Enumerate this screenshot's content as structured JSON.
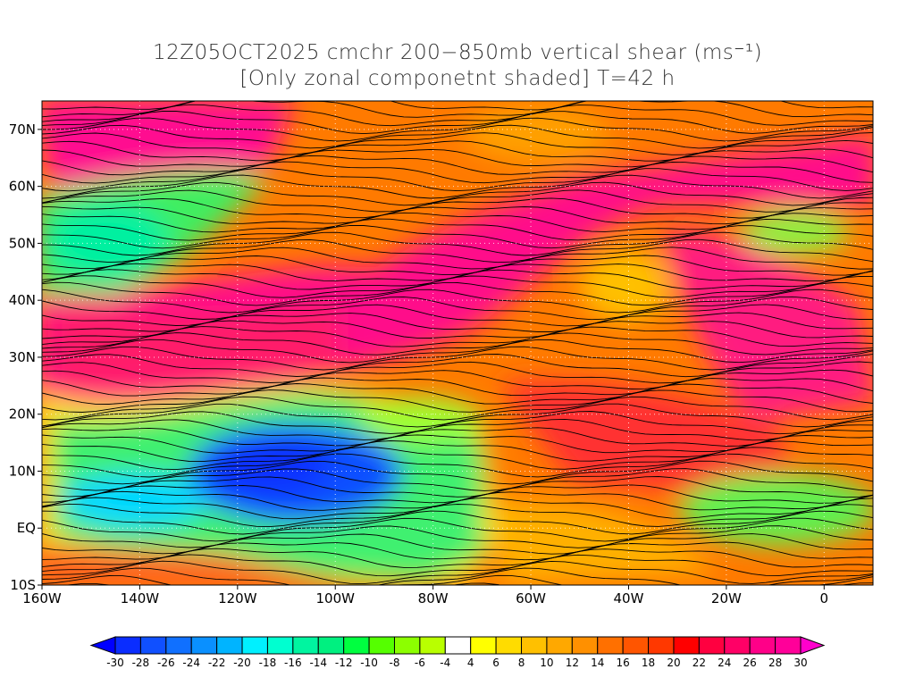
{
  "title": {
    "line1": "12Z05OCT2025 cmchr 200−850mb vertical shear (ms⁻¹)",
    "line2": "[Only zonal componetnt shaded] T=42 h"
  },
  "map": {
    "lon_range": [
      -160,
      10
    ],
    "lat_range": [
      -10,
      75
    ],
    "lat_labels": [
      {
        "lat": 70,
        "label": "70N"
      },
      {
        "lat": 60,
        "label": "60N"
      },
      {
        "lat": 50,
        "label": "50N"
      },
      {
        "lat": 40,
        "label": "40N"
      },
      {
        "lat": 30,
        "label": "30N"
      },
      {
        "lat": 20,
        "label": "20N"
      },
      {
        "lat": 10,
        "label": "10N"
      },
      {
        "lat": 0,
        "label": "EQ"
      },
      {
        "lat": -10,
        "label": "10S"
      }
    ],
    "lon_labels": [
      {
        "lon": -160,
        "label": "160W"
      },
      {
        "lon": -140,
        "label": "140W"
      },
      {
        "lon": -120,
        "label": "120W"
      },
      {
        "lon": -100,
        "label": "100W"
      },
      {
        "lon": -80,
        "label": "80W"
      },
      {
        "lon": -60,
        "label": "60W"
      },
      {
        "lon": -40,
        "label": "40W"
      },
      {
        "lon": -20,
        "label": "20W"
      },
      {
        "lon": 0,
        "label": "0"
      }
    ]
  },
  "colorbar": {
    "labels": [
      "-30",
      "-28",
      "-26",
      "-24",
      "-22",
      "-20",
      "-18",
      "-16",
      "-14",
      "-12",
      "-10",
      "-8",
      "-6",
      "-4",
      "4",
      "6",
      "8",
      "10",
      "12",
      "14",
      "16",
      "18",
      "20",
      "22",
      "24",
      "26",
      "28",
      "30"
    ],
    "colors": [
      "#0a2dff",
      "#1050ff",
      "#1070ff",
      "#0a90ff",
      "#00b4ff",
      "#00f0ff",
      "#00ffd0",
      "#00f5a0",
      "#00f080",
      "#00ff40",
      "#55ff00",
      "#8cff00",
      "#b9ff00",
      "#ffffff",
      "#ffff00",
      "#ffdc00",
      "#ffc000",
      "#ffa800",
      "#ff9000",
      "#ff7000",
      "#ff5500",
      "#ff3800",
      "#ff0000",
      "#ff0040",
      "#ff0066",
      "#ff0088",
      "#ff0099"
    ],
    "under_color": "#0000ff",
    "over_color": "#ff00cc"
  }
}
